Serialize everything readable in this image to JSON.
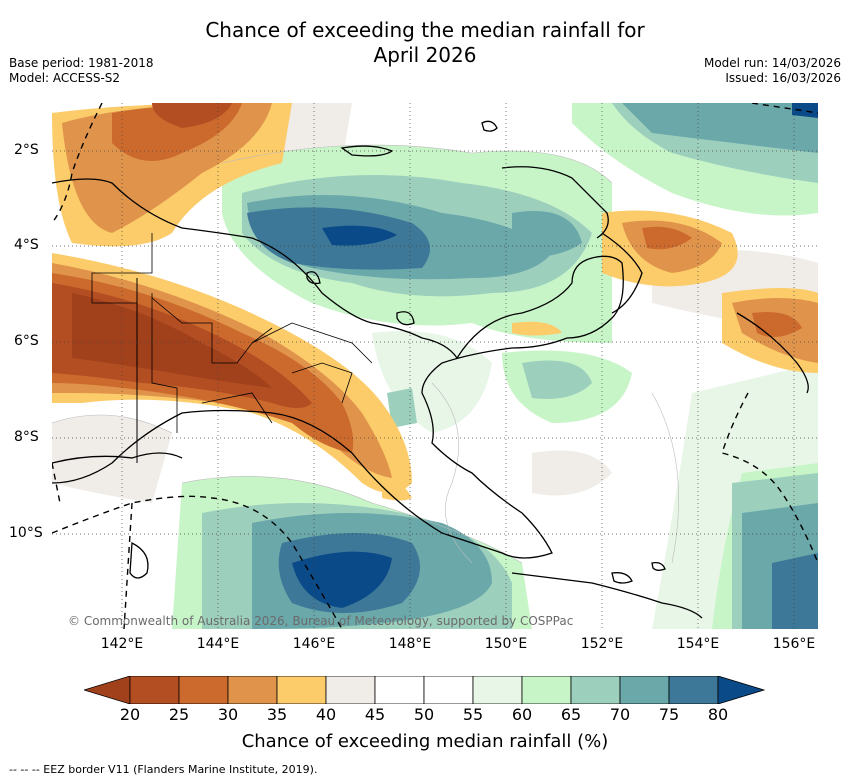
{
  "title_line1": "Chance of exceeding the median rainfall for",
  "title_line2": "April 2026",
  "base_period": "Base period: 1981-2018",
  "model": "Model: ACCESS-S2",
  "model_run": "Model run: 14/03/2026",
  "issued": "Issued: 16/03/2026",
  "credit": "© Commonwealth of Australia 2026, Bureau of Meteorology, supported by COSPPac",
  "lat_labels": [
    "2°S",
    "4°S",
    "6°S",
    "8°S",
    "10°S"
  ],
  "lon_labels": [
    "142°E",
    "144°E",
    "146°E",
    "148°E",
    "150°E",
    "152°E",
    "154°E",
    "156°E"
  ],
  "colorbar": {
    "ticks": [
      "20",
      "25",
      "30",
      "35",
      "40",
      "45",
      "50",
      "55",
      "60",
      "65",
      "70",
      "75",
      "80"
    ],
    "colors": [
      "#a0411c",
      "#b34d22",
      "#cc6a2e",
      "#e0934a",
      "#fccc6a",
      "#f0ede8",
      "#ffffff",
      "#ffffff",
      "#e8f6e8",
      "#c8f5c8",
      "#9dcfbd",
      "#6aa8aa",
      "#3e7898",
      "#0a4a88"
    ],
    "label": "Chance of exceeding median rainfall (%)"
  },
  "legend": "--  --  -- EEZ border V11 (Flanders Marine Institute, 2019)."
}
